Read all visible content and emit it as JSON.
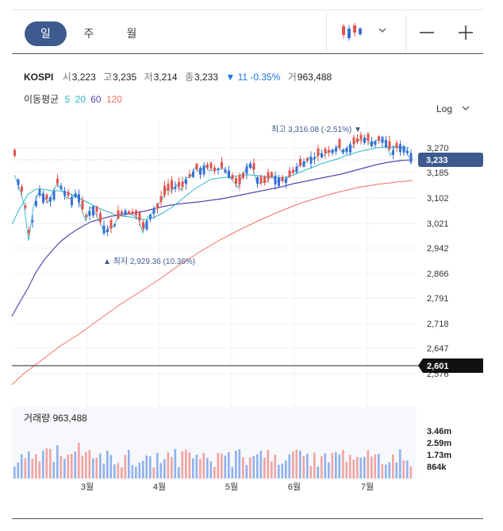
{
  "tabs": [
    {
      "label": "일"
    },
    {
      "label": "주"
    },
    {
      "label": "월"
    }
  ],
  "quote": {
    "symbol": "KOSPI",
    "open_label": "시",
    "open": "3,223",
    "high_label": "고",
    "high": "3,235",
    "low_label": "저",
    "low": "3,214",
    "close_label": "종",
    "close": "3,233",
    "change": "▼ 11 -0.35%",
    "volume_label": "거",
    "volume": "963,488"
  },
  "moving_average": {
    "label": "이동평균",
    "periods": [
      {
        "value": "5",
        "color": "#2bb7c9"
      },
      {
        "value": "20",
        "color": "#2bb7c9"
      },
      {
        "value": "60",
        "color": "#5a47b0"
      },
      {
        "value": "120",
        "color": "#f07065"
      }
    ]
  },
  "scale_mode": "Log",
  "price_axis": [
    "3,270",
    "3,185",
    "3,102",
    "3,021",
    "2,942",
    "2,866",
    "2,791",
    "2,718",
    "2,647",
    "2,576"
  ],
  "current_price_tag": "3,233",
  "crosshair_price_tag": "2,601",
  "annotations": {
    "high": "최고 3,316.08 (-2.51%)",
    "low": "최저 2,929.36 (10.36%)"
  },
  "volume_panel": {
    "label": "거래량 963,488",
    "axis": [
      "3.46m",
      "2.59m",
      "1.73m",
      "864k"
    ]
  },
  "months": [
    "3월",
    "4월",
    "5월",
    "6월",
    "7월"
  ],
  "colors": {
    "up": "#e5534b",
    "down": "#3b6fd6",
    "ma_short": "#2bb7c9",
    "ma60": "#5a47b0",
    "ma120": "#f07065",
    "accent": "#3d5a8e"
  }
}
